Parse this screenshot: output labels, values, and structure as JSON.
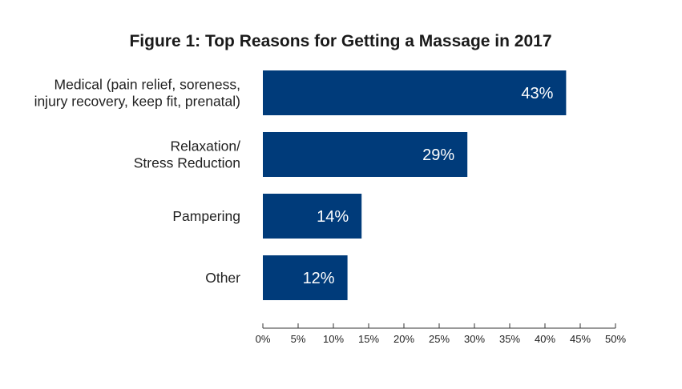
{
  "chart_data": {
    "type": "bar",
    "orientation": "horizontal",
    "title": "Figure 1: Top Reasons for Getting a Massage in 2017",
    "categories": [
      [
        "Medical (pain relief, soreness,",
        "injury recovery, keep fit, prenatal)"
      ],
      [
        "Relaxation/",
        "Stress Reduction"
      ],
      [
        "Pampering"
      ],
      [
        "Other"
      ]
    ],
    "values": [
      43,
      29,
      14,
      12
    ],
    "data_labels": [
      "43%",
      "29%",
      "14%",
      "12%"
    ],
    "xlim": [
      0,
      50
    ],
    "xticks": [
      "0%",
      "5%",
      "10%",
      "15%",
      "20%",
      "25%",
      "30%",
      "35%",
      "40%",
      "45%",
      "50%"
    ],
    "xlabel": "",
    "ylabel": "",
    "grid": false,
    "legend": "none",
    "bar_color": "#003b7a"
  }
}
